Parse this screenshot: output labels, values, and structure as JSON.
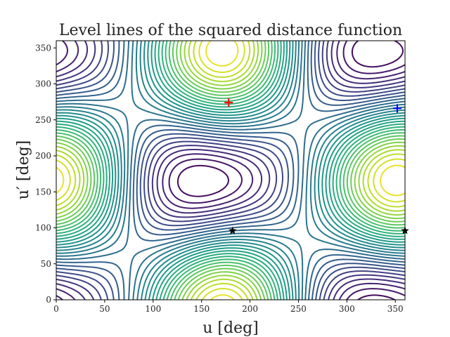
{
  "chart_data": {
    "type": "contour",
    "title": "Level lines of the squared distance function",
    "xlabel": "u [deg]",
    "ylabel": "u′ [deg]",
    "xlim": [
      0,
      360
    ],
    "ylim": [
      0,
      360
    ],
    "xticks": [
      "0",
      "50",
      "100",
      "150",
      "200",
      "250",
      "300",
      "350"
    ],
    "yticks": [
      "0",
      "50",
      "100",
      "150",
      "200",
      "250",
      "300",
      "350"
    ],
    "colormap": "viridis",
    "grid": false,
    "markers": [
      {
        "symbol": "plus",
        "color": "#ff0000",
        "x": 178,
        "y": 274
      },
      {
        "symbol": "plus",
        "color": "#0000ff",
        "x": 352,
        "y": 266
      },
      {
        "symbol": "star",
        "color": "#000000",
        "x": 182,
        "y": 96
      },
      {
        "symbol": "star",
        "color": "#000000",
        "x": 360,
        "y": 96
      }
    ]
  }
}
